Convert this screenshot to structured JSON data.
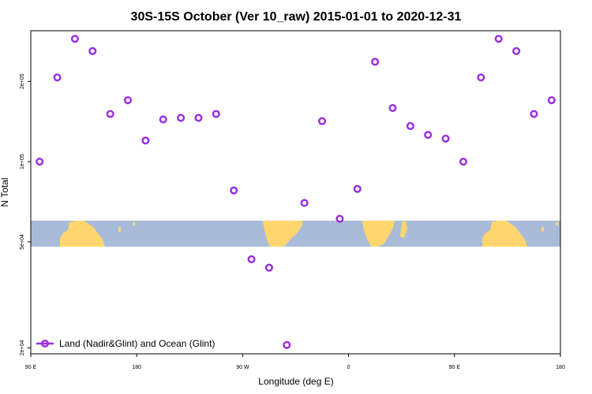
{
  "chart_data": {
    "type": "scatter",
    "title": "30S-15S October (Ver 10_raw)   2015-01-01 to 2020-12-31",
    "xlabel": "Longitude (deg E)",
    "ylabel": "N Total",
    "y_scale": "log",
    "x_ticks": [
      {
        "value": 90,
        "label": "90 E"
      },
      {
        "value": 180,
        "label": "180"
      },
      {
        "value": 270,
        "label": "90 W"
      },
      {
        "value": 360,
        "label": "0"
      },
      {
        "value": 450,
        "label": "90 E"
      },
      {
        "value": 540,
        "label": "180"
      }
    ],
    "y_ticks": [
      {
        "value": 20000,
        "label": "2e+04"
      },
      {
        "value": 50000,
        "label": "5e+04"
      },
      {
        "value": 100000,
        "label": "1e+05"
      },
      {
        "value": 200000,
        "label": "2e+05"
      }
    ],
    "xlim": [
      90,
      540
    ],
    "ylim": [
      19000,
      310000
    ],
    "legend": {
      "position": "bottom-left",
      "label": "Land (Nadir&Glint) and Ocean (Glint)"
    },
    "colors": {
      "marker": "#9b30e0",
      "ocean": "#a8bcd9",
      "land": "#ffd76e"
    },
    "series": [
      {
        "name": "Land (Nadir&Glint) and Ocean (Glint)",
        "x": [
          97.5,
          112.5,
          127.5,
          142.5,
          157.5,
          172.5,
          187.5,
          202.5,
          217.5,
          232.5,
          247.5,
          262.5,
          277.5,
          292.5,
          307.5,
          322.5,
          337.5,
          352.5,
          367.5,
          382.5,
          397.5,
          412.5,
          427.5,
          442.5,
          457.5,
          472.5,
          487.5,
          502.5,
          517.5,
          532.5
        ],
        "y": [
          100000,
          207000,
          289000,
          260000,
          151000,
          170000,
          120000,
          144000,
          146000,
          146000,
          151000,
          78000,
          43000,
          40000,
          20500,
          70000,
          142000,
          61000,
          79000,
          237000,
          159000,
          136000,
          126000,
          122000,
          100000,
          207000,
          289000,
          260000,
          151000,
          170000
        ]
      }
    ]
  }
}
